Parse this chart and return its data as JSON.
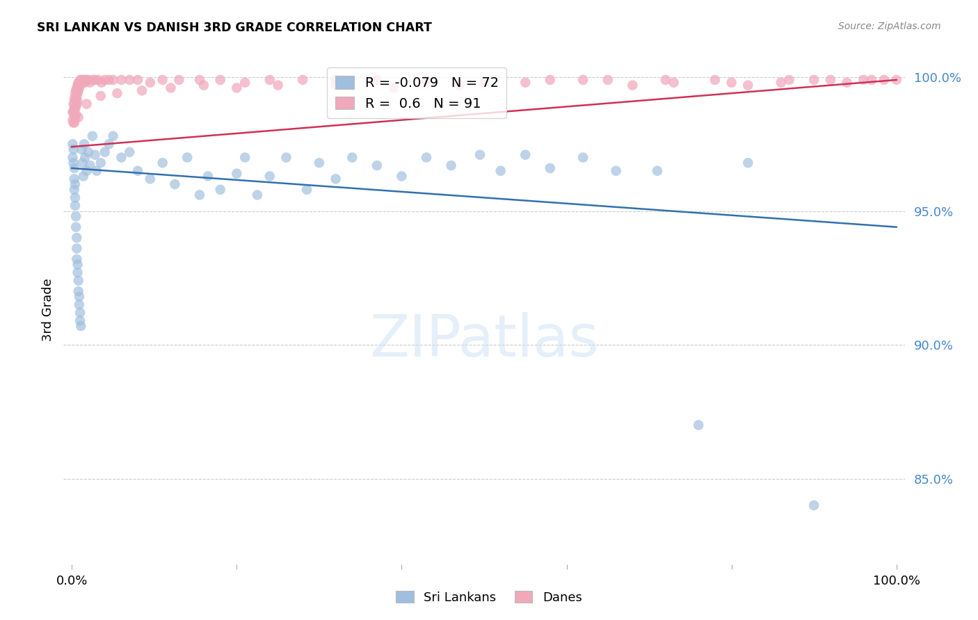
{
  "title": "SRI LANKAN VS DANISH 3RD GRADE CORRELATION CHART",
  "source": "Source: ZipAtlas.com",
  "ylabel": "3rd Grade",
  "ylim": [
    0.818,
    1.008
  ],
  "xlim": [
    -0.01,
    1.01
  ],
  "sri_lankans_R": -0.079,
  "sri_lankans_N": 72,
  "danes_R": 0.6,
  "danes_N": 91,
  "blue_color": "#a0bedd",
  "pink_color": "#f0a8bb",
  "blue_line_color": "#3070b0",
  "pink_line_color": "#d03055",
  "y_ticks": [
    0.85,
    0.9,
    0.95,
    1.0
  ],
  "y_tick_labels": [
    "85.0%",
    "90.0%",
    "95.0%",
    "100.0%"
  ],
  "grid_color": "#cccccc",
  "background_color": "#ffffff",
  "blue_line_x": [
    0.0,
    1.0
  ],
  "blue_line_y": [
    0.966,
    0.944
  ],
  "pink_line_x": [
    0.0,
    1.0
  ],
  "pink_line_y": [
    0.974,
    0.999
  ],
  "sri_lankans_x": [
    0.001,
    0.001,
    0.002,
    0.002,
    0.003,
    0.003,
    0.003,
    0.004,
    0.004,
    0.004,
    0.005,
    0.005,
    0.006,
    0.006,
    0.006,
    0.007,
    0.007,
    0.008,
    0.008,
    0.009,
    0.009,
    0.01,
    0.01,
    0.011,
    0.012,
    0.013,
    0.014,
    0.015,
    0.016,
    0.018,
    0.02,
    0.022,
    0.025,
    0.028,
    0.03,
    0.035,
    0.04,
    0.045,
    0.05,
    0.06,
    0.07,
    0.08,
    0.095,
    0.11,
    0.125,
    0.14,
    0.155,
    0.165,
    0.18,
    0.2,
    0.21,
    0.225,
    0.24,
    0.26,
    0.285,
    0.3,
    0.32,
    0.34,
    0.37,
    0.4,
    0.43,
    0.46,
    0.495,
    0.52,
    0.55,
    0.58,
    0.62,
    0.66,
    0.71,
    0.76,
    0.82,
    0.9
  ],
  "sri_lankans_y": [
    0.975,
    0.97,
    0.973,
    0.968,
    0.966,
    0.962,
    0.958,
    0.96,
    0.955,
    0.952,
    0.948,
    0.944,
    0.94,
    0.936,
    0.932,
    0.93,
    0.927,
    0.924,
    0.92,
    0.918,
    0.915,
    0.912,
    0.909,
    0.907,
    0.973,
    0.968,
    0.963,
    0.975,
    0.97,
    0.965,
    0.972,
    0.967,
    0.978,
    0.971,
    0.965,
    0.968,
    0.972,
    0.975,
    0.978,
    0.97,
    0.972,
    0.965,
    0.962,
    0.968,
    0.96,
    0.97,
    0.956,
    0.963,
    0.958,
    0.964,
    0.97,
    0.956,
    0.963,
    0.97,
    0.958,
    0.968,
    0.962,
    0.97,
    0.967,
    0.963,
    0.97,
    0.967,
    0.971,
    0.965,
    0.971,
    0.966,
    0.97,
    0.965,
    0.965,
    0.87,
    0.968,
    0.84
  ],
  "danes_x": [
    0.001,
    0.001,
    0.002,
    0.002,
    0.002,
    0.003,
    0.003,
    0.003,
    0.003,
    0.004,
    0.004,
    0.004,
    0.004,
    0.005,
    0.005,
    0.005,
    0.005,
    0.006,
    0.006,
    0.006,
    0.007,
    0.007,
    0.007,
    0.008,
    0.008,
    0.009,
    0.009,
    0.01,
    0.01,
    0.011,
    0.012,
    0.013,
    0.014,
    0.015,
    0.016,
    0.018,
    0.02,
    0.022,
    0.025,
    0.028,
    0.032,
    0.036,
    0.04,
    0.045,
    0.05,
    0.06,
    0.07,
    0.08,
    0.095,
    0.11,
    0.13,
    0.155,
    0.18,
    0.21,
    0.24,
    0.28,
    0.32,
    0.37,
    0.43,
    0.5,
    0.58,
    0.65,
    0.72,
    0.8,
    0.87,
    0.92,
    0.96,
    0.985,
    1.0,
    0.97,
    0.94,
    0.9,
    0.86,
    0.82,
    0.78,
    0.73,
    0.68,
    0.62,
    0.55,
    0.47,
    0.39,
    0.32,
    0.25,
    0.2,
    0.16,
    0.12,
    0.085,
    0.055,
    0.035,
    0.018,
    0.008
  ],
  "danes_y": [
    0.987,
    0.984,
    0.99,
    0.987,
    0.983,
    0.992,
    0.989,
    0.986,
    0.983,
    0.994,
    0.991,
    0.988,
    0.985,
    0.995,
    0.992,
    0.989,
    0.986,
    0.996,
    0.993,
    0.99,
    0.997,
    0.994,
    0.991,
    0.998,
    0.995,
    0.998,
    0.996,
    0.999,
    0.997,
    0.998,
    0.999,
    0.998,
    0.999,
    0.999,
    0.998,
    0.999,
    0.999,
    0.998,
    0.999,
    0.999,
    0.999,
    0.998,
    0.999,
    0.999,
    0.999,
    0.999,
    0.999,
    0.999,
    0.998,
    0.999,
    0.999,
    0.999,
    0.999,
    0.998,
    0.999,
    0.999,
    0.999,
    0.999,
    0.999,
    0.998,
    0.999,
    0.999,
    0.999,
    0.998,
    0.999,
    0.999,
    0.999,
    0.999,
    0.999,
    0.999,
    0.998,
    0.999,
    0.998,
    0.997,
    0.999,
    0.998,
    0.997,
    0.999,
    0.998,
    0.997,
    0.996,
    0.997,
    0.997,
    0.996,
    0.997,
    0.996,
    0.995,
    0.994,
    0.993,
    0.99,
    0.985
  ]
}
